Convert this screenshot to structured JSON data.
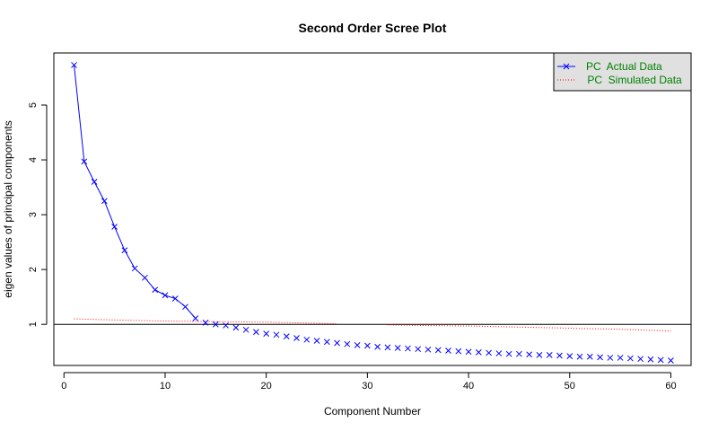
{
  "chart_data": {
    "type": "line",
    "title": "Second Order Scree Plot",
    "xlabel": "Component Number",
    "ylabel": "eigen values of principal components",
    "xlim": [
      -1,
      62
    ],
    "ylim": [
      0.25,
      5.95
    ],
    "xticks": [
      0,
      10,
      20,
      30,
      40,
      50,
      60
    ],
    "yticks": [
      1,
      2,
      3,
      4,
      5
    ],
    "reference_line": 1,
    "grid": false,
    "legend_position": "top-right",
    "series": [
      {
        "name": "PC  Actual Data",
        "color": "#0000ff",
        "style": "line-with-x-markers",
        "x": [
          1,
          2,
          3,
          4,
          5,
          6,
          7,
          8,
          9,
          10,
          11,
          12,
          13,
          14,
          15,
          16,
          17,
          18,
          19,
          20,
          21,
          22,
          23,
          24,
          25,
          26,
          27,
          28,
          29,
          30,
          31,
          32,
          33,
          34,
          35,
          36,
          37,
          38,
          39,
          40,
          41,
          42,
          43,
          44,
          45,
          46,
          47,
          48,
          49,
          50,
          51,
          52,
          53,
          54,
          55,
          56,
          57,
          58,
          59,
          60
        ],
        "values": [
          5.73,
          3.97,
          3.6,
          3.25,
          2.78,
          2.35,
          2.02,
          1.85,
          1.63,
          1.53,
          1.47,
          1.32,
          1.11,
          1.03,
          1.0,
          0.98,
          0.94,
          0.9,
          0.86,
          0.83,
          0.81,
          0.78,
          0.75,
          0.72,
          0.7,
          0.68,
          0.66,
          0.64,
          0.62,
          0.61,
          0.59,
          0.58,
          0.57,
          0.56,
          0.55,
          0.54,
          0.53,
          0.52,
          0.51,
          0.5,
          0.49,
          0.48,
          0.47,
          0.46,
          0.46,
          0.45,
          0.44,
          0.44,
          0.43,
          0.42,
          0.41,
          0.41,
          0.4,
          0.39,
          0.39,
          0.38,
          0.37,
          0.36,
          0.35,
          0.34
        ]
      },
      {
        "name": " PC  Simulated Data",
        "color": "#ff0000",
        "style": "dotted-line",
        "x": [
          1,
          5,
          10,
          15,
          20,
          25,
          27,
          32,
          35,
          40,
          45,
          50,
          55,
          60
        ],
        "values": [
          1.1,
          1.08,
          1.06,
          1.05,
          1.04,
          1.02,
          1.01,
          0.99,
          0.98,
          0.97,
          0.95,
          0.93,
          0.91,
          0.88
        ],
        "gap_between_x": [
          27,
          32
        ]
      }
    ]
  }
}
